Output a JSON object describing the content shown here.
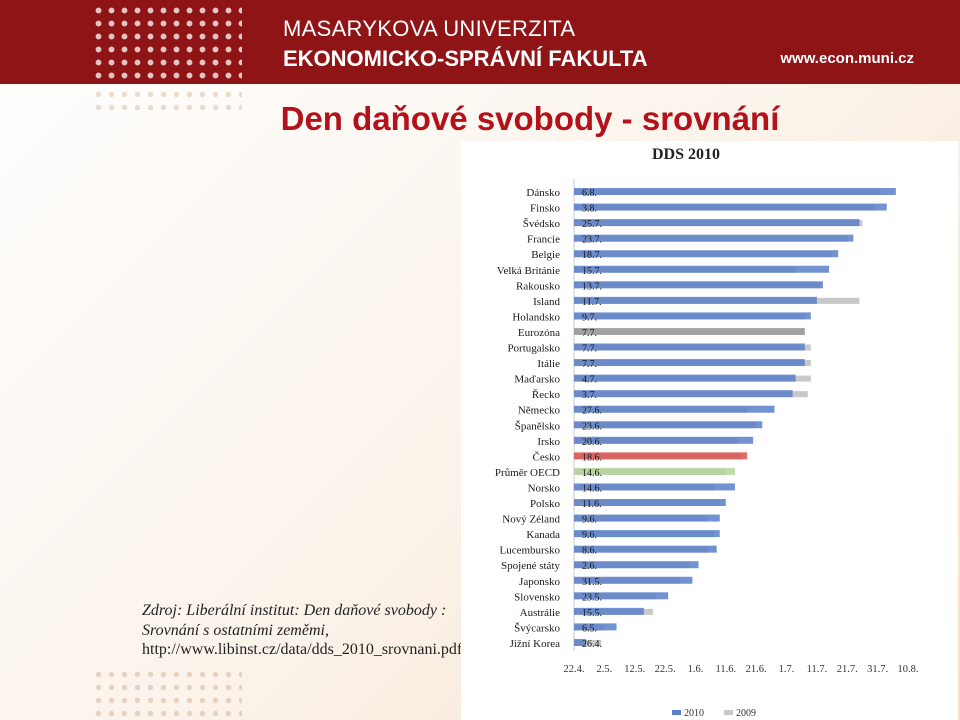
{
  "header": {
    "university": "MASARYKOVA UNIVERZITA",
    "faculty": "EKONOMICKO-SPRÁVNÍ FAKULTA",
    "website": "www.econ.muni.cz"
  },
  "slide": {
    "title": "Den daňové svobody - srovnání",
    "source_text": "Zdroj: Liberální institut: Den daňové svobody : Srovnání s ostatními zeměmi,",
    "source_url": "http://www.libinst.cz/data/dds_2010_srovnani.pdf"
  },
  "colors": {
    "header_bg": "#8f1416",
    "title": "#b3121a",
    "series_2010": "#5b7fc9",
    "series_2009": "#c8c8c8",
    "highlight_cesko": "#d9534f",
    "highlight_oecd": "#b6d49a",
    "highlight_eurozone": "#9a9a9a"
  },
  "chart_data": {
    "type": "bar",
    "orientation": "horizontal",
    "title": "DDS 2010",
    "x_ticks": [
      "22.4.",
      "2.5.",
      "12.5.",
      "22.5.",
      "1.6.",
      "11.6.",
      "21.6.",
      "1.7.",
      "11.7.",
      "21.7.",
      "31.7.",
      "10.8."
    ],
    "x_range": [
      "22.4.",
      "10.8."
    ],
    "grid": false,
    "legend_position": "bottom",
    "series": [
      {
        "name": "2010",
        "labels": [
          "6.8.",
          "3.8.",
          "25.7.",
          "23.7.",
          "18.7.",
          "15.7.",
          "13.7.",
          "11.7.",
          "9.7.",
          "7.7.",
          "7.7.",
          "7.7.",
          "4.7.",
          "3.7.",
          "27.6.",
          "23.6.",
          "20.6.",
          "18.6.",
          "14.6.",
          "14.6.",
          "11.6.",
          "9.6.",
          "9.6.",
          "8.6.",
          "2.6.",
          "31.5.",
          "23.5.",
          "15.5.",
          "6.5.",
          "26.4."
        ],
        "values": [
          "2010-08-06",
          "2010-08-03",
          "2010-07-25",
          "2010-07-23",
          "2010-07-18",
          "2010-07-15",
          "2010-07-13",
          "2010-07-11",
          "2010-07-09",
          "2010-07-07",
          "2010-07-07",
          "2010-07-07",
          "2010-07-04",
          "2010-07-03",
          "2010-06-27",
          "2010-06-23",
          "2010-06-20",
          "2010-06-18",
          "2010-06-14",
          "2010-06-14",
          "2010-06-11",
          "2010-06-09",
          "2010-06-09",
          "2010-06-08",
          "2010-06-02",
          "2010-05-31",
          "2010-05-23",
          "2010-05-15",
          "2010-05-06",
          "2010-04-26"
        ]
      },
      {
        "name": "2009",
        "values": [
          "2010-08-01",
          "2010-07-30",
          "2010-07-26",
          "2010-07-21",
          "2010-07-16",
          "2010-07-04",
          "2010-07-12",
          "2010-07-25",
          "2010-07-07",
          "2010-07-07",
          "2010-07-09",
          "2010-07-09",
          "2010-07-09",
          "2010-07-08",
          "2010-06-18",
          "2010-06-21",
          "2010-06-15",
          "2010-06-16",
          "2010-06-11",
          "2010-06-07",
          "2010-06-09",
          "2010-06-05",
          "2010-06-07",
          "2010-06-05",
          "2010-05-30",
          "2010-05-27",
          "2010-05-19",
          "2010-05-18",
          "2010-05-02",
          "2010-05-01"
        ]
      }
    ],
    "categories": [
      "Dánsko",
      "Finsko",
      "Švédsko",
      "Francie",
      "Belgie",
      "Velká Británie",
      "Rakousko",
      "Island",
      "Holandsko",
      "Eurozóna",
      "Portugalsko",
      "Itálie",
      "Maďarsko",
      "Řecko",
      "Německo",
      "Španělsko",
      "Irsko",
      "Česko",
      "Průměr OECD",
      "Norsko",
      "Polsko",
      "Nový Zéland",
      "Kanada",
      "Lucembursko",
      "Spojené státy",
      "Japonsko",
      "Slovensko",
      "Austrálie",
      "Švýcarsko",
      "Jižní Korea"
    ],
    "highlighted_categories": [
      "Eurozóna",
      "Česko",
      "Průměr OECD"
    ]
  }
}
